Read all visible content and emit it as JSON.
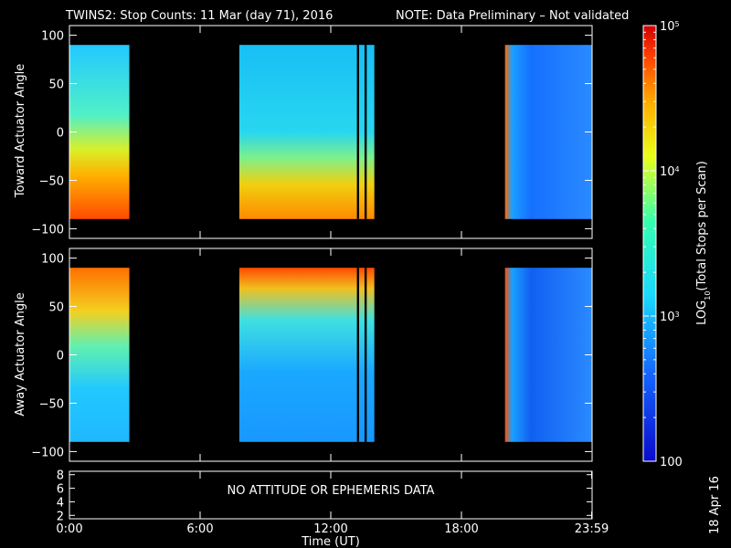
{
  "title": {
    "main": "TWINS2: Stop Counts: 11 Mar (day  71), 2016",
    "note": "NOTE: Data Preliminary – Not validated",
    "note_color": "#ff2a2a"
  },
  "chart_data": [
    {
      "type": "heatmap",
      "panel": "top",
      "ylabel": "Toward Actuator Angle",
      "xlabel": "",
      "ylim": [
        -110,
        110
      ],
      "yticks": [
        "100",
        "50",
        "0",
        "−50",
        "−100"
      ],
      "ytick_values": [
        100,
        50,
        0,
        -50,
        -100
      ],
      "y_data_range": [
        -90,
        90
      ],
      "xlim": [
        0,
        24
      ],
      "data_intervals_utc_hours": [
        [
          0.0,
          2.75
        ],
        [
          7.8,
          14.0
        ],
        [
          20.0,
          23.98
        ]
      ],
      "gap_intervals_utc_hours": [
        [
          13.2,
          13.3
        ],
        [
          13.55,
          13.65
        ]
      ],
      "colorscale": "log10 rainbow",
      "clim": [
        100,
        100000
      ]
    },
    {
      "type": "heatmap",
      "panel": "middle",
      "ylabel": "Away Actuator Angle",
      "xlabel": "",
      "ylim": [
        -110,
        110
      ],
      "yticks": [
        "100",
        "50",
        "0",
        "−50",
        "−100"
      ],
      "ytick_values": [
        100,
        50,
        0,
        -50,
        -100
      ],
      "y_data_range": [
        -90,
        90
      ],
      "xlim": [
        0,
        24
      ],
      "data_intervals_utc_hours": [
        [
          0.0,
          2.75
        ],
        [
          7.8,
          14.0
        ],
        [
          20.0,
          23.98
        ]
      ],
      "gap_intervals_utc_hours": [
        [
          13.2,
          13.3
        ],
        [
          13.55,
          13.65
        ]
      ],
      "colorscale": "log10 rainbow",
      "clim": [
        100,
        100000
      ]
    },
    {
      "type": "line",
      "panel": "bottom",
      "ylim": [
        1.5,
        8.5
      ],
      "yticks": [
        "8",
        "6",
        "4",
        "2"
      ],
      "ytick_values": [
        8,
        6,
        4,
        2
      ],
      "message": "NO ATTITUDE OR EPHEMERIS DATA",
      "xlabel": "Time (UT)",
      "xticks": [
        "0:00",
        "6:00",
        "12:00",
        "18:00",
        "23:59"
      ],
      "xtick_values": [
        0,
        6,
        12,
        18,
        23.98
      ]
    }
  ],
  "colorbar": {
    "label": "LOG",
    "label_sub": "10",
    "label_rest": "(Total Stops per Scan)",
    "ticks": [
      {
        "value": 100000,
        "base": "10",
        "exp": "5"
      },
      {
        "value": 10000,
        "base": "10",
        "exp": "4"
      },
      {
        "value": 1000,
        "base": "10",
        "exp": "3"
      },
      {
        "value": 100,
        "base": "100",
        "exp": ""
      }
    ]
  },
  "footer": {
    "date_stamp": "18 Apr 16"
  }
}
